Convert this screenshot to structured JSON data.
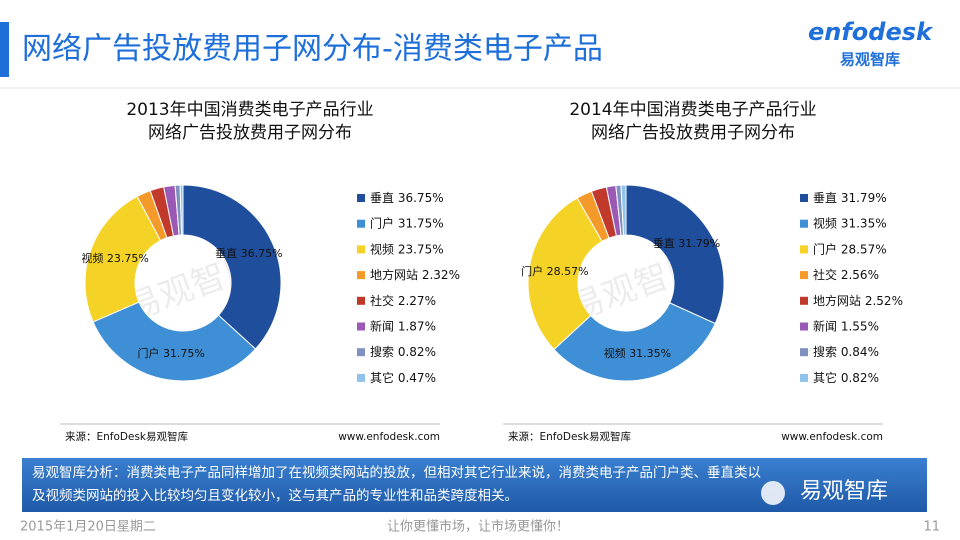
{
  "header": {
    "title": "网络广告投放费用子网分布-消费类电子产品",
    "logo": "enfodesk",
    "logo_sub": "易观智库"
  },
  "watermark": "易观智库",
  "chart_data": [
    {
      "type": "pie",
      "title": "2013年中国消费类电子产品行业",
      "subtitle": "网络广告投放费用子网分布",
      "categories": [
        "垂直",
        "门户",
        "视频",
        "地方网站",
        "社交",
        "新闻",
        "搜索",
        "其它"
      ],
      "values": [
        36.75,
        31.75,
        23.75,
        2.32,
        2.27,
        1.87,
        0.82,
        0.47
      ],
      "value_labels": [
        "36.75%",
        "31.75%",
        "23.75%",
        "2.32%",
        "2.27%",
        "1.87%",
        "0.82%",
        "0.47%"
      ],
      "colors": [
        "#1f4e9c",
        "#3f8fd6",
        "#f5d326",
        "#f39a2b",
        "#c0392b",
        "#9b59b6",
        "#8090c0",
        "#8fc3ea"
      ],
      "source": "来源：EnfoDesk易观智库",
      "url": "www.enfodesk.com"
    },
    {
      "type": "pie",
      "title": "2014年中国消费类电子产品行业",
      "subtitle": "网络广告投放费用子网分布",
      "categories": [
        "垂直",
        "视频",
        "门户",
        "社交",
        "地方网站",
        "新闻",
        "搜索",
        "其它"
      ],
      "values": [
        31.79,
        31.35,
        28.57,
        2.56,
        2.52,
        1.55,
        0.84,
        0.82
      ],
      "value_labels": [
        "31.79%",
        "31.35%",
        "28.57%",
        "2.56%",
        "2.52%",
        "1.55%",
        "0.84%",
        "0.82%"
      ],
      "colors": [
        "#1f4e9c",
        "#3f8fd6",
        "#f5d326",
        "#f39a2b",
        "#c0392b",
        "#9b59b6",
        "#8090c0",
        "#8fc3ea"
      ],
      "source": "来源：EnfoDesk易观智库",
      "url": "www.enfodesk.com"
    }
  ],
  "analysis": {
    "line1": "易观智库分析：消费类电子产品同样增加了在视频类网站的投放，但相对其它行业来说，消费类电子产品门户类、垂直类以",
    "line2": "及视频类网站的投入比较均匀且变化较小，这与其产品的专业性和品类跨度相关。",
    "badge": "易观智库"
  },
  "footer": {
    "date": "2015年1月20日星期二",
    "slogan": "让你更懂市场，让市场更懂你！",
    "page": "11"
  }
}
